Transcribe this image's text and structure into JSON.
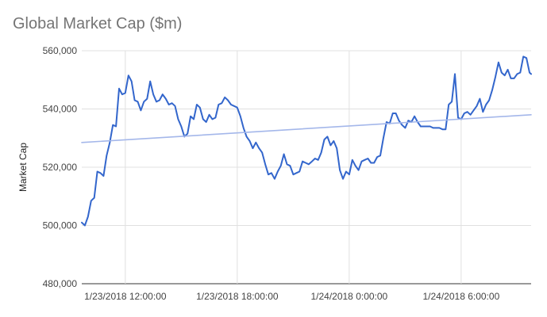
{
  "chart_data": {
    "type": "line",
    "title": "Global Market Cap ($m)",
    "xlabel": "",
    "ylabel": "Market Cap",
    "ylim": [
      480000,
      560000
    ],
    "y_ticks": [
      480000,
      500000,
      520000,
      540000,
      560000
    ],
    "y_tick_labels": [
      "480,000",
      "500,000",
      "520,000",
      "540,000",
      "560,000"
    ],
    "x_ticks": [
      "2018-01-23T12:00",
      "2018-01-23T18:00",
      "2018-01-24T00:00",
      "2018-01-24T06:00"
    ],
    "x_tick_labels": [
      "1/23/2018 12:00:00",
      "1/23/2018 18:00:00",
      "1/24/2018 0:00:00",
      "1/24/2018 6:00:00"
    ],
    "xlim": [
      "2018-01-23T09:40",
      "2018-01-24T09:45"
    ],
    "grid": true,
    "legend": "none",
    "series": [
      {
        "values": [
          [
            "2018-01-23T09:40",
            501000
          ],
          [
            "2018-01-23T09:50",
            500000
          ],
          [
            "2018-01-23T10:00",
            503000
          ],
          [
            "2018-01-23T10:10",
            508500
          ],
          [
            "2018-01-23T10:20",
            509500
          ],
          [
            "2018-01-23T10:30",
            518500
          ],
          [
            "2018-01-23T10:40",
            518000
          ],
          [
            "2018-01-23T10:50",
            517000
          ],
          [
            "2018-01-23T11:00",
            524000
          ],
          [
            "2018-01-23T11:10",
            528500
          ],
          [
            "2018-01-23T11:20",
            534500
          ],
          [
            "2018-01-23T11:30",
            534000
          ],
          [
            "2018-01-23T11:40",
            547000
          ],
          [
            "2018-01-23T11:50",
            545000
          ],
          [
            "2018-01-23T12:00",
            545500
          ],
          [
            "2018-01-23T12:10",
            551500
          ],
          [
            "2018-01-23T12:20",
            549500
          ],
          [
            "2018-01-23T12:30",
            543000
          ],
          [
            "2018-01-23T12:40",
            542500
          ],
          [
            "2018-01-23T12:50",
            539500
          ],
          [
            "2018-01-23T13:00",
            542500
          ],
          [
            "2018-01-23T13:10",
            543500
          ],
          [
            "2018-01-23T13:20",
            549500
          ],
          [
            "2018-01-23T13:30",
            545000
          ],
          [
            "2018-01-23T13:40",
            542500
          ],
          [
            "2018-01-23T13:50",
            543000
          ],
          [
            "2018-01-23T14:00",
            545000
          ],
          [
            "2018-01-23T14:10",
            543500
          ],
          [
            "2018-01-23T14:20",
            541500
          ],
          [
            "2018-01-23T14:30",
            542000
          ],
          [
            "2018-01-23T14:40",
            541000
          ],
          [
            "2018-01-23T14:50",
            536500
          ],
          [
            "2018-01-23T15:00",
            534000
          ],
          [
            "2018-01-23T15:10",
            530500
          ],
          [
            "2018-01-23T15:20",
            531500
          ],
          [
            "2018-01-23T15:30",
            537500
          ],
          [
            "2018-01-23T15:40",
            536500
          ],
          [
            "2018-01-23T15:50",
            541500
          ],
          [
            "2018-01-23T16:00",
            540500
          ],
          [
            "2018-01-23T16:10",
            536500
          ],
          [
            "2018-01-23T16:20",
            535500
          ],
          [
            "2018-01-23T16:30",
            538000
          ],
          [
            "2018-01-23T16:40",
            536500
          ],
          [
            "2018-01-23T16:50",
            537000
          ],
          [
            "2018-01-23T17:00",
            541500
          ],
          [
            "2018-01-23T17:10",
            542000
          ],
          [
            "2018-01-23T17:20",
            544000
          ],
          [
            "2018-01-23T17:30",
            543000
          ],
          [
            "2018-01-23T17:40",
            541500
          ],
          [
            "2018-01-23T17:50",
            541000
          ],
          [
            "2018-01-23T18:00",
            540500
          ],
          [
            "2018-01-23T18:10",
            537500
          ],
          [
            "2018-01-23T18:20",
            533500
          ],
          [
            "2018-01-23T18:30",
            530500
          ],
          [
            "2018-01-23T18:40",
            529000
          ],
          [
            "2018-01-23T18:50",
            526500
          ],
          [
            "2018-01-23T19:00",
            528500
          ],
          [
            "2018-01-23T19:10",
            526500
          ],
          [
            "2018-01-23T19:20",
            525000
          ],
          [
            "2018-01-23T19:30",
            521000
          ],
          [
            "2018-01-23T19:40",
            517500
          ],
          [
            "2018-01-23T19:50",
            518000
          ],
          [
            "2018-01-23T20:00",
            516000
          ],
          [
            "2018-01-23T20:10",
            518500
          ],
          [
            "2018-01-23T20:20",
            520500
          ],
          [
            "2018-01-23T20:30",
            524500
          ],
          [
            "2018-01-23T20:40",
            521000
          ],
          [
            "2018-01-23T20:50",
            520500
          ],
          [
            "2018-01-23T21:00",
            517500
          ],
          [
            "2018-01-23T21:10",
            518000
          ],
          [
            "2018-01-23T21:20",
            518500
          ],
          [
            "2018-01-23T21:30",
            522000
          ],
          [
            "2018-01-23T21:40",
            521500
          ],
          [
            "2018-01-23T21:50",
            521000
          ],
          [
            "2018-01-23T22:00",
            522000
          ],
          [
            "2018-01-23T22:10",
            523000
          ],
          [
            "2018-01-23T22:20",
            522500
          ],
          [
            "2018-01-23T22:30",
            525000
          ],
          [
            "2018-01-23T22:40",
            529500
          ],
          [
            "2018-01-23T22:50",
            530500
          ],
          [
            "2018-01-23T23:00",
            527500
          ],
          [
            "2018-01-23T23:10",
            529000
          ],
          [
            "2018-01-23T23:20",
            526500
          ],
          [
            "2018-01-23T23:30",
            519000
          ],
          [
            "2018-01-23T23:40",
            516000
          ],
          [
            "2018-01-23T23:50",
            518500
          ],
          [
            "2018-01-24T00:00",
            517500
          ],
          [
            "2018-01-24T00:10",
            522500
          ],
          [
            "2018-01-24T00:20",
            520500
          ],
          [
            "2018-01-24T00:30",
            519000
          ],
          [
            "2018-01-24T00:40",
            522000
          ],
          [
            "2018-01-24T00:50",
            522500
          ],
          [
            "2018-01-24T01:00",
            523000
          ],
          [
            "2018-01-24T01:10",
            521500
          ],
          [
            "2018-01-24T01:20",
            521500
          ],
          [
            "2018-01-24T01:30",
            523500
          ],
          [
            "2018-01-24T01:40",
            524000
          ],
          [
            "2018-01-24T01:50",
            530000
          ],
          [
            "2018-01-24T02:00",
            535500
          ],
          [
            "2018-01-24T02:10",
            535000
          ],
          [
            "2018-01-24T02:20",
            538500
          ],
          [
            "2018-01-24T02:30",
            538500
          ],
          [
            "2018-01-24T02:40",
            536000
          ],
          [
            "2018-01-24T02:50",
            534500
          ],
          [
            "2018-01-24T03:00",
            533500
          ],
          [
            "2018-01-24T03:10",
            536000
          ],
          [
            "2018-01-24T03:20",
            535500
          ],
          [
            "2018-01-24T03:30",
            537500
          ],
          [
            "2018-01-24T03:40",
            535500
          ],
          [
            "2018-01-24T03:50",
            534000
          ],
          [
            "2018-01-24T04:00",
            534000
          ],
          [
            "2018-01-24T04:10",
            534000
          ],
          [
            "2018-01-24T04:20",
            534000
          ],
          [
            "2018-01-24T04:30",
            533500
          ],
          [
            "2018-01-24T04:40",
            533500
          ],
          [
            "2018-01-24T04:50",
            533500
          ],
          [
            "2018-01-24T05:00",
            533000
          ],
          [
            "2018-01-24T05:10",
            533000
          ],
          [
            "2018-01-24T05:20",
            541500
          ],
          [
            "2018-01-24T05:30",
            542500
          ],
          [
            "2018-01-24T05:40",
            552000
          ],
          [
            "2018-01-24T05:50",
            537000
          ],
          [
            "2018-01-24T06:00",
            536500
          ],
          [
            "2018-01-24T06:10",
            538500
          ],
          [
            "2018-01-24T06:20",
            539000
          ],
          [
            "2018-01-24T06:30",
            538000
          ],
          [
            "2018-01-24T06:40",
            539500
          ],
          [
            "2018-01-24T06:50",
            541000
          ],
          [
            "2018-01-24T07:00",
            543500
          ],
          [
            "2018-01-24T07:10",
            539000
          ],
          [
            "2018-01-24T07:20",
            541500
          ],
          [
            "2018-01-24T07:30",
            543000
          ],
          [
            "2018-01-24T07:40",
            546500
          ],
          [
            "2018-01-24T07:50",
            551000
          ],
          [
            "2018-01-24T08:00",
            556000
          ],
          [
            "2018-01-24T08:10",
            552500
          ],
          [
            "2018-01-24T08:20",
            551500
          ],
          [
            "2018-01-24T08:30",
            553500
          ],
          [
            "2018-01-24T08:40",
            550500
          ],
          [
            "2018-01-24T08:50",
            550500
          ],
          [
            "2018-01-24T09:00",
            552000
          ],
          [
            "2018-01-24T09:10",
            552500
          ],
          [
            "2018-01-24T09:20",
            558000
          ],
          [
            "2018-01-24T09:30",
            557500
          ],
          [
            "2018-01-24T09:40",
            552500
          ],
          [
            "2018-01-24T09:45",
            552000
          ]
        ],
        "color": "#3366cc"
      },
      {
        "values": [
          [
            "2018-01-23T09:40",
            528500
          ],
          [
            "2018-01-24T09:45",
            538000
          ]
        ],
        "color": "#a4b7ea"
      }
    ]
  }
}
